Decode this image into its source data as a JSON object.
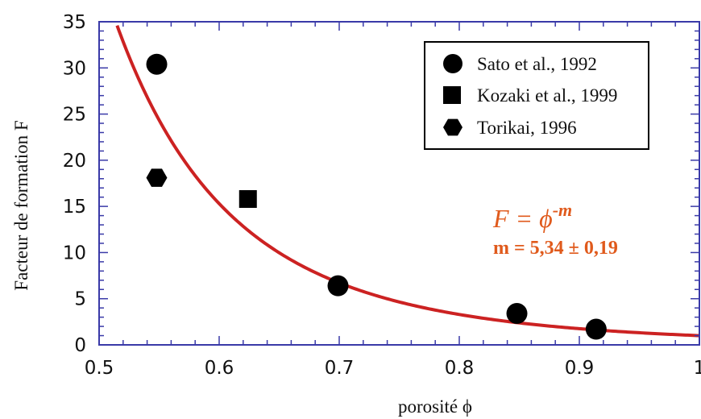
{
  "chart_data": {
    "type": "scatter",
    "title": "",
    "xlabel": "porosité ϕ",
    "ylabel": "Facteur de formation F",
    "xlim": [
      0.5,
      1.0
    ],
    "ylim": [
      0,
      35
    ],
    "x_ticks": [
      "0.5",
      "0.6",
      "0.7",
      "0.8",
      "0.9",
      "1"
    ],
    "y_ticks": [
      "0",
      "5",
      "10",
      "15",
      "20",
      "25",
      "30",
      "35"
    ],
    "grid": false,
    "legend_position": "top-right",
    "series": [
      {
        "name": "Sato et al., 1992",
        "marker": "circle",
        "points": [
          [
            0.548,
            30.4
          ],
          [
            0.699,
            6.4
          ],
          [
            0.848,
            3.4
          ],
          [
            0.914,
            1.7
          ]
        ]
      },
      {
        "name": "Kozaki et al., 1999",
        "marker": "square",
        "points": [
          [
            0.624,
            15.8
          ]
        ]
      },
      {
        "name": "Torikai, 1996",
        "marker": "hexagon",
        "points": [
          [
            0.548,
            18.1
          ]
        ]
      }
    ],
    "fit_curve": {
      "exponent": 5.34,
      "color": "#cc2222"
    },
    "annotation": {
      "equation_lhs": "F = ϕ",
      "equation_exp": "-m",
      "parameter": "m = 5,34 ± 0,19",
      "color": "#e05a1c"
    },
    "colors": {
      "axis_frame": "#3a3aa8",
      "markers": "#000000"
    }
  }
}
